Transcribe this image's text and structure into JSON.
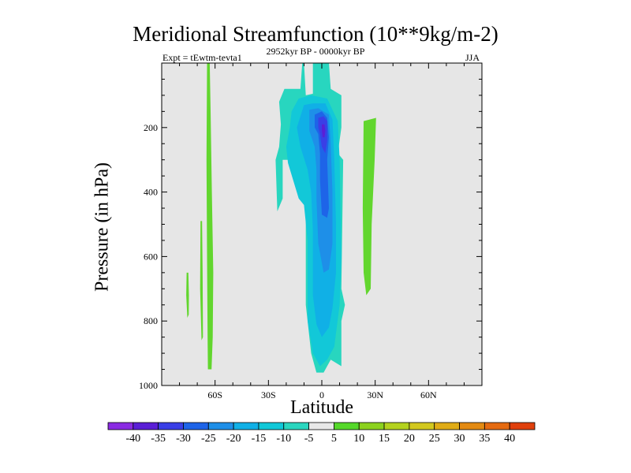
{
  "chart_data": {
    "type": "contour",
    "title": "Meridional Streamfunction (10**9kg/m-2)",
    "subtitle": "2952kyr BP - 0000kyr BP",
    "left_label": "Expt = tEwtm-tevta1",
    "right_label": "JJA",
    "xlabel": "Latitude",
    "ylabel": "Pressure (in hPa)",
    "xlim": [
      -90,
      90
    ],
    "ylim": [
      1000,
      0
    ],
    "x_ticks": [
      {
        "value": -60,
        "label": "60S"
      },
      {
        "value": -30,
        "label": "30S"
      },
      {
        "value": 0,
        "label": "0"
      },
      {
        "value": 30,
        "label": "30N"
      },
      {
        "value": 60,
        "label": "60N"
      }
    ],
    "y_ticks": [
      {
        "value": 200,
        "label": "200"
      },
      {
        "value": 400,
        "label": "400"
      },
      {
        "value": 600,
        "label": "600"
      },
      {
        "value": 800,
        "label": "800"
      },
      {
        "value": 1000,
        "label": "1000"
      }
    ],
    "missing_color": "#e6e6e6",
    "levels": [
      -40,
      -35,
      -30,
      -25,
      -20,
      -15,
      -10,
      -5,
      5,
      10,
      15,
      20,
      25,
      30,
      35,
      40
    ],
    "colorbar_colors": [
      "#8a2be2",
      "#5a1fd6",
      "#3a3fe6",
      "#1e64e8",
      "#1e8fe8",
      "#10b0e6",
      "#10c8d8",
      "#2ad6bf",
      "#e8e8e8",
      "#55d82a",
      "#8cd21e",
      "#b4d21e",
      "#d2c81e",
      "#e0ac16",
      "#e38a12",
      "#e56a10",
      "#e0400c"
    ],
    "regions": [
      {
        "name": "green-band-60s",
        "level": 5,
        "color": "#62d62e",
        "points": [
          [
            -64.5,
            0
          ],
          [
            -63,
            0
          ],
          [
            -62.5,
            150
          ],
          [
            -61.8,
            400
          ],
          [
            -61,
            650
          ],
          [
            -61.3,
            850
          ],
          [
            -62,
            950
          ],
          [
            -64,
            950
          ],
          [
            -64.2,
            850
          ],
          [
            -64.5,
            600
          ],
          [
            -64.8,
            300
          ]
        ]
      },
      {
        "name": "green-patch-67s",
        "level": 5,
        "color": "#62d62e",
        "points": [
          [
            -68.2,
            490
          ],
          [
            -67.3,
            490
          ],
          [
            -67,
            650
          ],
          [
            -66.8,
            850
          ],
          [
            -67.6,
            860
          ],
          [
            -68.4,
            700
          ]
        ]
      },
      {
        "name": "green-patch-76s",
        "level": 5,
        "color": "#62d62e",
        "points": [
          [
            -76,
            650
          ],
          [
            -75,
            650
          ],
          [
            -74.7,
            720
          ],
          [
            -74.8,
            780
          ],
          [
            -75.6,
            790
          ],
          [
            -76.2,
            720
          ]
        ]
      },
      {
        "name": "green-patch-25n",
        "level": 5,
        "color": "#62d62e",
        "points": [
          [
            23.5,
            180
          ],
          [
            30.5,
            170
          ],
          [
            29.7,
            300
          ],
          [
            28,
            500
          ],
          [
            27.5,
            700
          ],
          [
            25,
            720
          ],
          [
            23.5,
            650
          ],
          [
            23,
            450
          ]
        ]
      },
      {
        "name": "contour-neg5",
        "level": -5,
        "color": "#28d6bf",
        "points": [
          [
            -11,
            0
          ],
          [
            -10,
            0
          ],
          [
            -9,
            100
          ],
          [
            -5,
            95
          ],
          [
            -5,
            0
          ],
          [
            4,
            0
          ],
          [
            5,
            80
          ],
          [
            11,
            100
          ],
          [
            11,
            200
          ],
          [
            9,
            280
          ],
          [
            12,
            300
          ],
          [
            11,
            700
          ],
          [
            13,
            750
          ],
          [
            11,
            800
          ],
          [
            11,
            940
          ],
          [
            5,
            920
          ],
          [
            1,
            960
          ],
          [
            -3,
            960
          ],
          [
            -6,
            900
          ],
          [
            -9,
            750
          ],
          [
            -9,
            470
          ],
          [
            -11,
            360
          ],
          [
            -16,
            300
          ],
          [
            -22,
            300
          ],
          [
            -22,
            420
          ],
          [
            -25,
            460
          ],
          [
            -26,
            300
          ],
          [
            -24,
            260
          ],
          [
            -23,
            190
          ],
          [
            -24,
            120
          ],
          [
            -21,
            80
          ],
          [
            -12,
            80
          ]
        ]
      },
      {
        "name": "contour-neg10",
        "level": -10,
        "color": "#12c8d8",
        "points": [
          [
            -13,
            110
          ],
          [
            -6,
            100
          ],
          [
            3,
            110
          ],
          [
            9,
            180
          ],
          [
            10,
            300
          ],
          [
            11,
            600
          ],
          [
            10,
            750
          ],
          [
            7,
            880
          ],
          [
            3,
            920
          ],
          [
            -1,
            940
          ],
          [
            -5,
            900
          ],
          [
            -8,
            800
          ],
          [
            -8,
            550
          ],
          [
            -10,
            440
          ],
          [
            -13,
            420
          ],
          [
            -19,
            310
          ],
          [
            -20,
            260
          ],
          [
            -18,
            200
          ],
          [
            -17,
            150
          ]
        ]
      },
      {
        "name": "contour-neg15",
        "level": -15,
        "color": "#10b0e6",
        "points": [
          [
            -10,
            130
          ],
          [
            -5,
            125
          ],
          [
            2,
            125
          ],
          [
            6,
            175
          ],
          [
            7,
            300
          ],
          [
            8,
            500
          ],
          [
            8,
            650
          ],
          [
            6,
            760
          ],
          [
            4,
            820
          ],
          [
            0,
            850
          ],
          [
            -3,
            810
          ],
          [
            -5,
            720
          ],
          [
            -5,
            520
          ],
          [
            -6,
            400
          ],
          [
            -8,
            330
          ],
          [
            -12,
            260
          ],
          [
            -14,
            200
          ]
        ]
      },
      {
        "name": "contour-neg20",
        "level": -20,
        "color": "#1e8fe8",
        "points": [
          [
            -7,
            145
          ],
          [
            -2,
            140
          ],
          [
            4,
            160
          ],
          [
            5,
            250
          ],
          [
            6,
            400
          ],
          [
            6,
            560
          ],
          [
            4,
            640
          ],
          [
            1,
            650
          ],
          [
            -2,
            560
          ],
          [
            -3,
            420
          ],
          [
            -3,
            330
          ],
          [
            -4,
            260
          ],
          [
            -7,
            210
          ]
        ]
      },
      {
        "name": "contour-neg25",
        "level": -25,
        "color": "#1e64e8",
        "points": [
          [
            -4,
            160
          ],
          [
            0,
            150
          ],
          [
            3,
            170
          ],
          [
            4,
            230
          ],
          [
            3,
            300
          ],
          [
            4,
            450
          ],
          [
            3,
            480
          ],
          [
            0,
            470
          ],
          [
            -1,
            360
          ],
          [
            -1,
            280
          ],
          [
            -2,
            220
          ],
          [
            -4,
            200
          ]
        ]
      },
      {
        "name": "contour-neg30",
        "level": -30,
        "color": "#3a3fe6",
        "points": [
          [
            -2,
            170
          ],
          [
            1,
            165
          ],
          [
            3,
            180
          ],
          [
            3,
            240
          ],
          [
            2,
            280
          ],
          [
            0,
            260
          ],
          [
            -1,
            220
          ],
          [
            -2,
            200
          ]
        ]
      },
      {
        "name": "contour-neg35",
        "level": -35,
        "color": "#5a1fd6",
        "points": [
          [
            0,
            190
          ],
          [
            1.5,
            190
          ],
          [
            2,
            210
          ],
          [
            1.5,
            230
          ],
          [
            0.5,
            230
          ],
          [
            0,
            210
          ]
        ]
      }
    ]
  }
}
